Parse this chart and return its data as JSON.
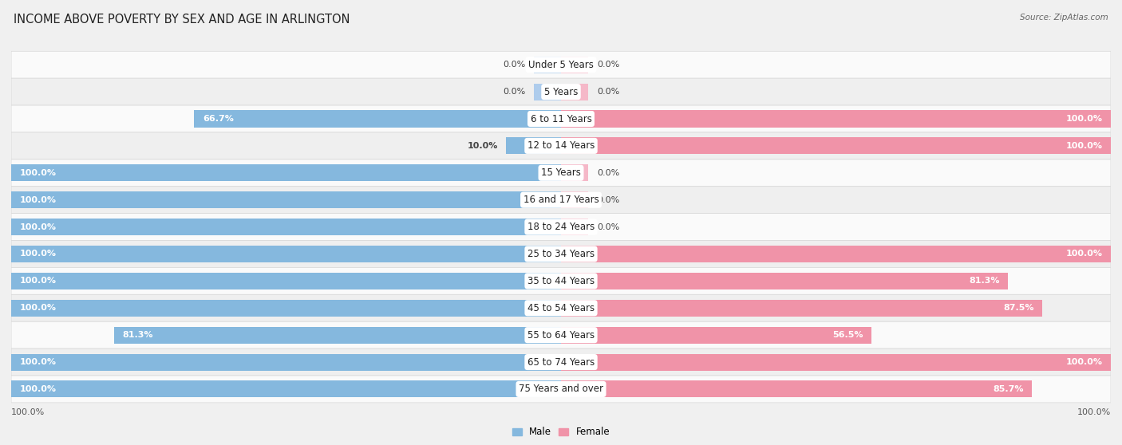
{
  "title": "INCOME ABOVE POVERTY BY SEX AND AGE IN ARLINGTON",
  "source": "Source: ZipAtlas.com",
  "categories": [
    "Under 5 Years",
    "5 Years",
    "6 to 11 Years",
    "12 to 14 Years",
    "15 Years",
    "16 and 17 Years",
    "18 to 24 Years",
    "25 to 34 Years",
    "35 to 44 Years",
    "45 to 54 Years",
    "55 to 64 Years",
    "65 to 74 Years",
    "75 Years and over"
  ],
  "male": [
    0.0,
    0.0,
    66.7,
    10.0,
    100.0,
    100.0,
    100.0,
    100.0,
    100.0,
    100.0,
    81.3,
    100.0,
    100.0
  ],
  "female": [
    0.0,
    0.0,
    100.0,
    100.0,
    0.0,
    0.0,
    0.0,
    100.0,
    81.3,
    87.5,
    56.5,
    100.0,
    85.7
  ],
  "male_color": "#85b8de",
  "female_color": "#f093a8",
  "male_stub_color": "#aeccec",
  "female_stub_color": "#f5b8c8",
  "bg_color": "#f0f0f0",
  "row_color_odd": "#fafafa",
  "row_color_even": "#efefef",
  "title_fontsize": 10.5,
  "label_fontsize": 8.5,
  "bar_label_fontsize": 8.0,
  "axis_label_fontsize": 8,
  "bar_height": 0.62,
  "stub_size": 5.0,
  "xlim": 100.0
}
